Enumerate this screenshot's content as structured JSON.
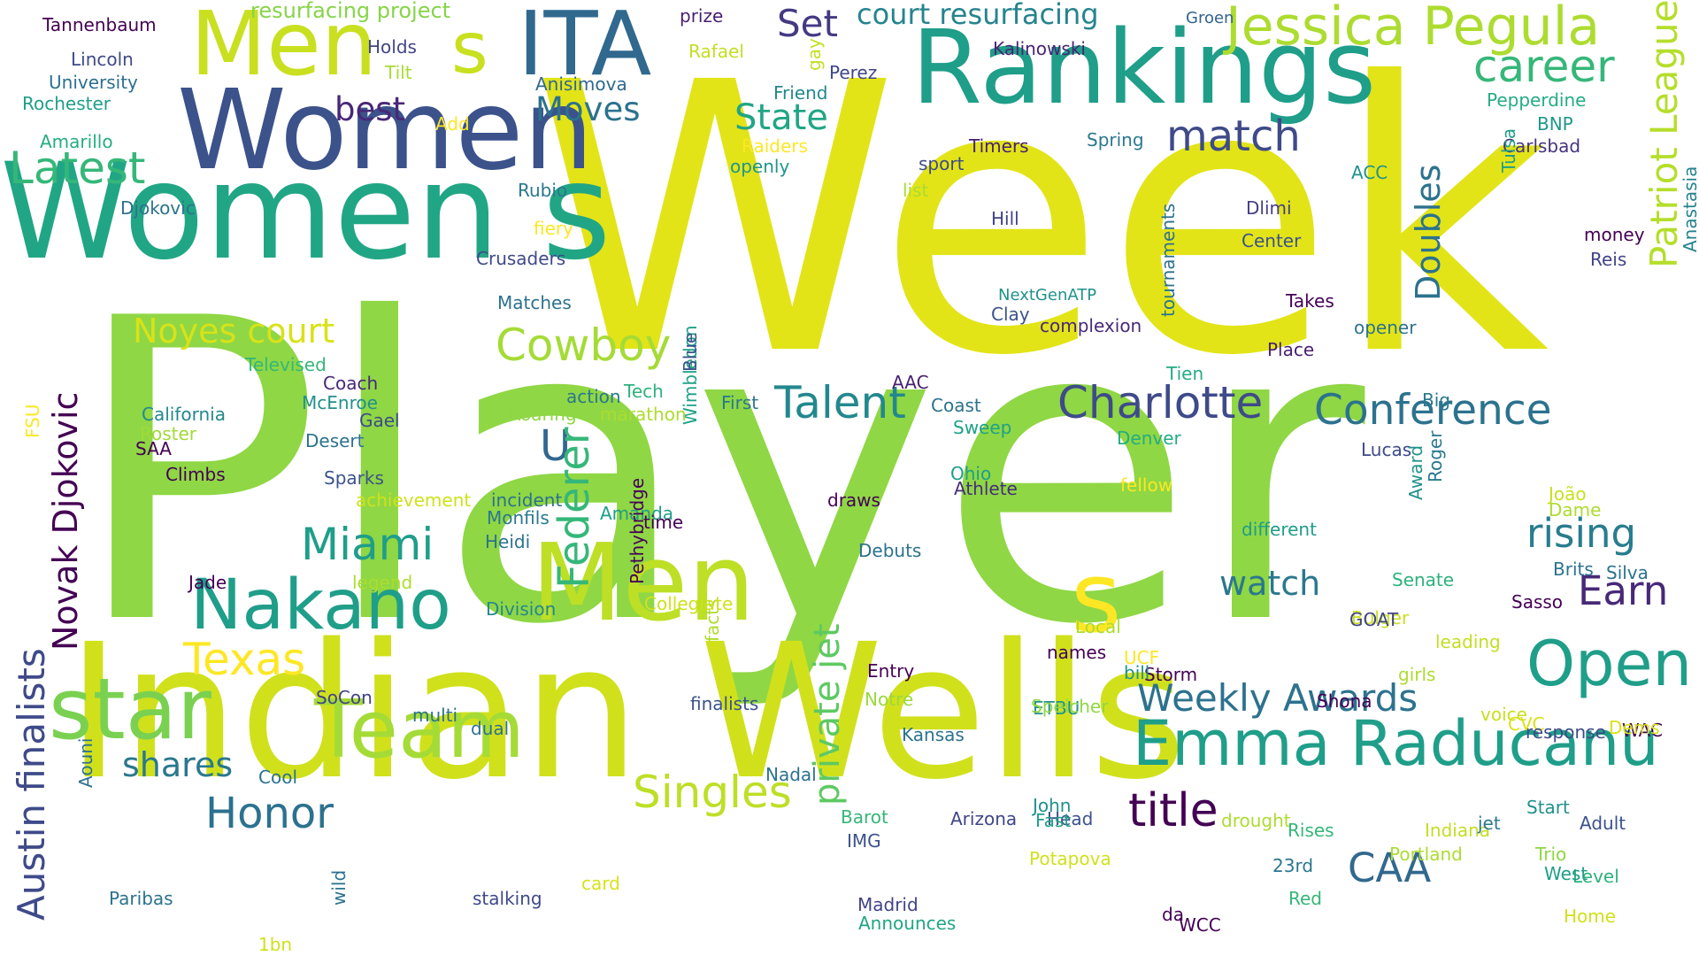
{
  "words": [
    {
      "text": "Player",
      "color": "#8fd744"
    },
    {
      "text": "Week",
      "color": "#e2e418"
    },
    {
      "text": "Indian Wells",
      "color": "#d0e11c"
    },
    {
      "text": "Women s",
      "color": "#21a685"
    },
    {
      "text": "Women",
      "color": "#3b528b"
    },
    {
      "text": "Rankings",
      "color": "#1f9e89"
    },
    {
      "text": "Men",
      "color": "#c8e020"
    },
    {
      "text": "Men",
      "color": "#bddf26"
    },
    {
      "text": "ITA",
      "color": "#31688e"
    },
    {
      "text": "s",
      "color": "#c8e020"
    },
    {
      "text": "s",
      "color": "#fde725"
    },
    {
      "text": "Team",
      "color": "#a5db36"
    },
    {
      "text": "star",
      "color": "#7ad151"
    },
    {
      "text": "Jessica Pegula",
      "color": "#addc30"
    },
    {
      "text": "Emma Raducanu",
      "color": "#1f9e89"
    },
    {
      "text": "Nakano",
      "color": "#1f9e89"
    },
    {
      "text": "career",
      "color": "#35b779"
    },
    {
      "text": "Latest",
      "color": "#35b779"
    },
    {
      "text": "Cowboy",
      "color": "#a5db36"
    },
    {
      "text": "Charlotte",
      "color": "#3e4a89"
    },
    {
      "text": "Conference",
      "color": "#2c728e"
    },
    {
      "text": "Talent",
      "color": "#23888e"
    },
    {
      "text": "Miami",
      "color": "#1f9e89"
    },
    {
      "text": "Open",
      "color": "#1f9e89"
    },
    {
      "text": "Weekly Awards",
      "color": "#2c728e"
    },
    {
      "text": "title",
      "color": "#440154"
    },
    {
      "text": "Singles",
      "color": "#bddf26"
    },
    {
      "text": "Honor",
      "color": "#2c728e"
    },
    {
      "text": "Texas",
      "color": "#fde725"
    },
    {
      "text": "match",
      "color": "#3e4a89"
    },
    {
      "text": "rising",
      "color": "#287d8e"
    },
    {
      "text": "Earn",
      "color": "#482878"
    },
    {
      "text": "CAA",
      "color": "#31688e"
    },
    {
      "text": "watch",
      "color": "#2a788e"
    },
    {
      "text": "State",
      "color": "#21a685"
    },
    {
      "text": "Moves",
      "color": "#2c728e"
    },
    {
      "text": "Set",
      "color": "#443a83"
    },
    {
      "text": "court resurfacing",
      "color": "#25848e"
    },
    {
      "text": "shares",
      "color": "#2a788e"
    },
    {
      "text": "best",
      "color": "#482878"
    },
    {
      "text": "Noyes court",
      "color": "#d8e219"
    },
    {
      "text": "U",
      "color": "#31688e"
    },
    {
      "text": "Patriot League",
      "color": "#b5de2b"
    },
    {
      "text": "Austin finalists",
      "color": "#3e4a89"
    },
    {
      "text": "Novak Djokovic",
      "color": "#440154"
    },
    {
      "text": "Doubles",
      "color": "#2c728e"
    },
    {
      "text": "Federer",
      "color": "#35b779"
    },
    {
      "text": "private jet",
      "color": "#5ec962"
    },
    {
      "text": "Tannenbaum",
      "color": "#440154"
    },
    {
      "text": "resurfacing project",
      "color": "#86d549"
    },
    {
      "text": "prize",
      "color": "#481f70"
    },
    {
      "text": "Rafael",
      "color": "#c2df23"
    },
    {
      "text": "Groen",
      "color": "#33638d"
    },
    {
      "text": "Lincoln",
      "color": "#3e4a89"
    },
    {
      "text": "University",
      "color": "#2d708e"
    },
    {
      "text": "Holds",
      "color": "#414487"
    },
    {
      "text": "Tilt",
      "color": "#a8db34"
    },
    {
      "text": "Kalinowski",
      "color": "#482475"
    },
    {
      "text": "Rochester",
      "color": "#1f9e89"
    },
    {
      "text": "Anisimova",
      "color": "#31688e"
    },
    {
      "text": "Friend",
      "color": "#23888e"
    },
    {
      "text": "Perez",
      "color": "#404688"
    },
    {
      "text": "gay",
      "color": "#c2df23"
    },
    {
      "text": "Pepperdine",
      "color": "#25ac82"
    },
    {
      "text": "BNP",
      "color": "#1f988b"
    },
    {
      "text": "Carlsbad",
      "color": "#46337f"
    },
    {
      "text": "Tulsa",
      "color": "#1f9e89"
    },
    {
      "text": "Add",
      "color": "#fde725"
    },
    {
      "text": "Raiders",
      "color": "#fde725"
    },
    {
      "text": "Timers",
      "color": "#481f70"
    },
    {
      "text": "Spring",
      "color": "#2a788e"
    },
    {
      "text": "Amarillo",
      "color": "#26ad81"
    },
    {
      "text": "openly",
      "color": "#1f968b"
    },
    {
      "text": "sport",
      "color": "#3e4a89"
    },
    {
      "text": "ACC",
      "color": "#21918c"
    },
    {
      "text": "list",
      "color": "#addc30"
    },
    {
      "text": "Rubio",
      "color": "#2a788e"
    },
    {
      "text": "Djokovic",
      "color": "#2c728e"
    },
    {
      "text": "fiery",
      "color": "#fde725"
    },
    {
      "text": "Dlimi",
      "color": "#433e85"
    },
    {
      "text": "money",
      "color": "#440154"
    },
    {
      "text": "Reis",
      "color": "#414487"
    },
    {
      "text": "Anastasia",
      "color": "#25848e"
    },
    {
      "text": "Hill",
      "color": "#414487"
    },
    {
      "text": "Center",
      "color": "#3b528b"
    },
    {
      "text": "Crusaders",
      "color": "#3e4a89"
    },
    {
      "text": "Matches",
      "color": "#2c728e"
    },
    {
      "text": "Wimbledon",
      "color": "#1fa188"
    },
    {
      "text": "Blue",
      "color": "#3b528b"
    },
    {
      "text": "NextGenATP",
      "color": "#21918c"
    },
    {
      "text": "Clay",
      "color": "#3b528b"
    },
    {
      "text": "complexion",
      "color": "#482878"
    },
    {
      "text": "tournaments",
      "color": "#2c728e"
    },
    {
      "text": "Takes",
      "color": "#440154"
    },
    {
      "text": "opener",
      "color": "#2c728e"
    },
    {
      "text": "Place",
      "color": "#481f70"
    },
    {
      "text": "Televised",
      "color": "#35b779"
    },
    {
      "text": "Coach",
      "color": "#482878"
    },
    {
      "text": "McEnroe",
      "color": "#21918c"
    },
    {
      "text": "action",
      "color": "#2a788e"
    },
    {
      "text": "Tech",
      "color": "#2db27d"
    },
    {
      "text": "AAC",
      "color": "#481f70"
    },
    {
      "text": "Tien",
      "color": "#25ac82"
    },
    {
      "text": "Big",
      "color": "#2a788e"
    },
    {
      "text": "FSU",
      "color": "#fde725"
    },
    {
      "text": "California",
      "color": "#23888e"
    },
    {
      "text": "Roster",
      "color": "#a0da39"
    },
    {
      "text": "Gael",
      "color": "#3e4a89"
    },
    {
      "text": "SAA",
      "color": "#440154"
    },
    {
      "text": "Desert",
      "color": "#2c728e"
    },
    {
      "text": "Roaring",
      "color": "#8fd744"
    },
    {
      "text": "marathon",
      "color": "#addc30"
    },
    {
      "text": "First",
      "color": "#2a788e"
    },
    {
      "text": "Coast",
      "color": "#2c728e"
    },
    {
      "text": "Sweep",
      "color": "#1fa188"
    },
    {
      "text": "Denver",
      "color": "#25ac82"
    },
    {
      "text": "Lucas",
      "color": "#3e4a89"
    },
    {
      "text": "Climbs",
      "color": "#440154"
    },
    {
      "text": "Sparks",
      "color": "#3b528b"
    },
    {
      "text": "Ohio",
      "color": "#1f9e89"
    },
    {
      "text": "Athlete",
      "color": "#472d7b"
    },
    {
      "text": "fellow",
      "color": "#fde725"
    },
    {
      "text": "Roger",
      "color": "#2a788e"
    },
    {
      "text": "Award",
      "color": "#21918c"
    },
    {
      "text": "João",
      "color": "#c8e020"
    },
    {
      "text": "Dame",
      "color": "#addc30"
    },
    {
      "text": "achievement",
      "color": "#d0e11c"
    },
    {
      "text": "incident",
      "color": "#2c728e"
    },
    {
      "text": "Monfils",
      "color": "#2a788e"
    },
    {
      "text": "Amanda",
      "color": "#1f9e89"
    },
    {
      "text": "draws",
      "color": "#440154"
    },
    {
      "text": "different",
      "color": "#1f9e89"
    },
    {
      "text": "time",
      "color": "#440154"
    },
    {
      "text": "Heidi",
      "color": "#2c728e"
    },
    {
      "text": "Pethybridge",
      "color": "#440154"
    },
    {
      "text": "Debuts",
      "color": "#2c728e"
    },
    {
      "text": "Senate",
      "color": "#2db27d"
    },
    {
      "text": "Brits",
      "color": "#2c728e"
    },
    {
      "text": "Silva",
      "color": "#2c728e"
    },
    {
      "text": "Jade",
      "color": "#440154"
    },
    {
      "text": "legend",
      "color": "#addc30"
    },
    {
      "text": "Division",
      "color": "#23888e"
    },
    {
      "text": "facts",
      "color": "#addc30"
    },
    {
      "text": "Collegiate",
      "color": "#d0e11c"
    },
    {
      "text": "Bulger",
      "color": "#c8e020"
    },
    {
      "text": "Sasso",
      "color": "#440154"
    },
    {
      "text": "GOAT",
      "color": "#414487"
    },
    {
      "text": "leading",
      "color": "#c2df23"
    },
    {
      "text": "Local",
      "color": "#addc30"
    },
    {
      "text": "names",
      "color": "#440154"
    },
    {
      "text": "UCF",
      "color": "#fde725"
    },
    {
      "text": "Storm",
      "color": "#440154"
    },
    {
      "text": "bill",
      "color": "#21918c"
    },
    {
      "text": "Entry",
      "color": "#440154"
    },
    {
      "text": "girls",
      "color": "#addc30"
    },
    {
      "text": "SoCon",
      "color": "#414487"
    },
    {
      "text": "finalists",
      "color": "#3b528b"
    },
    {
      "text": "Notre",
      "color": "#9bd93c"
    },
    {
      "text": "Shona",
      "color": "#440154"
    },
    {
      "text": "ETBU",
      "color": "#21918c"
    },
    {
      "text": "Speicher",
      "color": "#8fd744"
    },
    {
      "text": "multi",
      "color": "#2c728e"
    },
    {
      "text": "dual",
      "color": "#2c728e"
    },
    {
      "text": "Kansas",
      "color": "#2c728e"
    },
    {
      "text": "voice",
      "color": "#c8e020"
    },
    {
      "text": "CVC",
      "color": "#d8e219"
    },
    {
      "text": "response",
      "color": "#3e4a89"
    },
    {
      "text": "WAC",
      "color": "#440154"
    },
    {
      "text": "Dems",
      "color": "#d8e219"
    },
    {
      "text": "Cool",
      "color": "#2c728e"
    },
    {
      "text": "Aouni",
      "color": "#2c728e"
    },
    {
      "text": "Nadal",
      "color": "#2c728e"
    },
    {
      "text": "John",
      "color": "#21918c"
    },
    {
      "text": "Barot",
      "color": "#35b779"
    },
    {
      "text": "Arizona",
      "color": "#404688"
    },
    {
      "text": "Start",
      "color": "#21918c"
    },
    {
      "text": "Head",
      "color": "#3b528b"
    },
    {
      "text": "Fast",
      "color": "#1f9e89"
    },
    {
      "text": "drought",
      "color": "#addc30"
    },
    {
      "text": "Adult",
      "color": "#3b528b"
    },
    {
      "text": "Indiana",
      "color": "#c2df23"
    },
    {
      "text": "Rises",
      "color": "#35b779"
    },
    {
      "text": "jet",
      "color": "#2a788e"
    },
    {
      "text": "IMG",
      "color": "#3b528b"
    },
    {
      "text": "Potapova",
      "color": "#d0e11c"
    },
    {
      "text": "Portland",
      "color": "#addc30"
    },
    {
      "text": "23rd",
      "color": "#2a788e"
    },
    {
      "text": "Trio",
      "color": "#8fd744"
    },
    {
      "text": "Level",
      "color": "#2db27d"
    },
    {
      "text": "West",
      "color": "#1f9e89"
    },
    {
      "text": "Paribas",
      "color": "#2c728e"
    },
    {
      "text": "wild",
      "color": "#2c728e"
    },
    {
      "text": "stalking",
      "color": "#3e4a89"
    },
    {
      "text": "card",
      "color": "#d8e219"
    },
    {
      "text": "Madrid",
      "color": "#414487"
    },
    {
      "text": "Announces",
      "color": "#21a685"
    },
    {
      "text": "Red",
      "color": "#35b779"
    },
    {
      "text": "da",
      "color": "#440154"
    },
    {
      "text": "WCC",
      "color": "#440154"
    },
    {
      "text": "Home",
      "color": "#d0e11c"
    },
    {
      "text": "1bn",
      "color": "#d0e11c"
    }
  ]
}
